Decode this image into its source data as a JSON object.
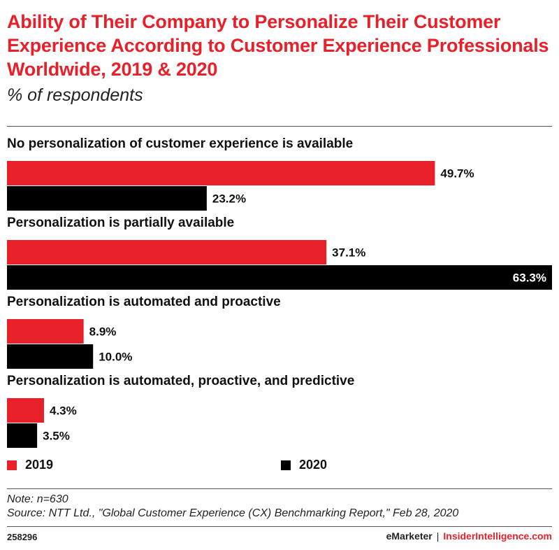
{
  "header": {
    "title": "Ability of Their Company to Personalize Their Customer Experience According to Customer Experience Professionals Worldwide, 2019 & 2020",
    "subtitle": "% of respondents"
  },
  "footer": {
    "note": "Note: n=630",
    "source": "Source: NTT Ltd., \"Global Customer Experience (CX) Benchmarking Report,\" Feb 28, 2020",
    "chart_id": "258296",
    "brand_emarketer": "eMarketer",
    "brand_separator": "|",
    "brand_insider": "InsiderIntelligence.com"
  },
  "colors": {
    "accent": "#e8202a",
    "series_2019": "#e8202a",
    "series_2020": "#000000"
  },
  "chart_data": {
    "type": "bar",
    "orientation": "horizontal",
    "title": "Ability of Their Company to Personalize Their Customer Experience According to Customer Experience Professionals Worldwide, 2019 & 2020",
    "subtitle": "% of respondents",
    "categories": [
      "No personalization of customer experience is available",
      "Personalization is partially available",
      "Personalization is automated and proactive",
      "Personalization is automated, proactive, and predictive"
    ],
    "series": [
      {
        "name": "2019",
        "color": "#e8202a",
        "values": [
          49.7,
          37.1,
          8.9,
          4.3
        ],
        "labels": [
          "49.7%",
          "37.1%",
          "8.9%",
          "4.3%"
        ]
      },
      {
        "name": "2020",
        "color": "#000000",
        "values": [
          23.2,
          63.3,
          10.0,
          3.5
        ],
        "labels": [
          "23.2%",
          "63.3%",
          "10.0%",
          "3.5%"
        ]
      }
    ],
    "xlim": [
      0,
      63.3
    ],
    "unit": "%",
    "grid": false,
    "legend_position": "bottom"
  }
}
